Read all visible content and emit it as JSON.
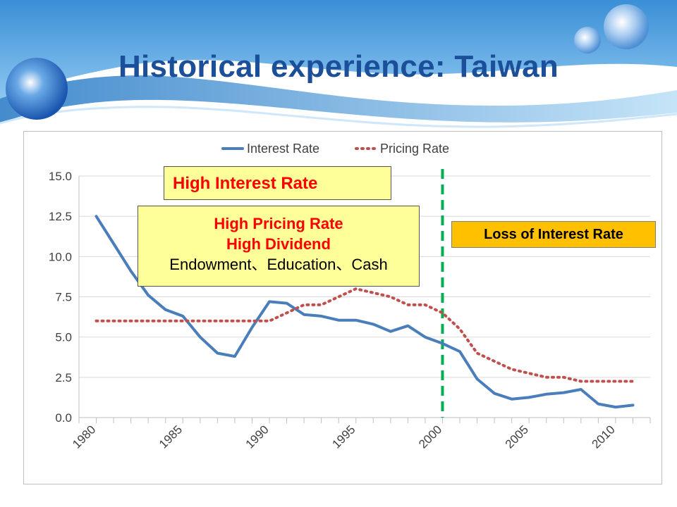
{
  "slide": {
    "title": "Historical experience: Taiwan"
  },
  "colors": {
    "title": "#1c4f9a",
    "interest_line": "#4a7ebb",
    "pricing_line": "#c0504d",
    "divider": "#00b050",
    "callout_yellow": "#ffff99",
    "callout_orange": "#ffc000",
    "callout_red_text": "#ff0000"
  },
  "callouts": {
    "high_interest": "High Interest Rate",
    "high_pricing_line1": "High Pricing Rate",
    "high_pricing_line2": "High Dividend",
    "high_pricing_line3": "Endowment、Education、Cash",
    "loss_of_interest": "Loss of Interest Rate"
  },
  "chart_data": {
    "type": "line",
    "title": "",
    "xlabel": "",
    "ylabel": "",
    "legend_position": "top-center",
    "grid": true,
    "ylim": [
      0,
      15
    ],
    "y_ticks": [
      "0.0",
      "2.5",
      "5.0",
      "7.5",
      "10.0",
      "12.5",
      "15.0"
    ],
    "x_range": [
      1979,
      2012
    ],
    "x_ticks": [
      "1980",
      "1985",
      "1990",
      "1995",
      "2000",
      "2005",
      "2010"
    ],
    "divider_year": 2000,
    "series": [
      {
        "name": "Interest Rate",
        "style": "solid",
        "x": [
          1980,
          1981,
          1982,
          1983,
          1984,
          1985,
          1986,
          1987,
          1988,
          1989,
          1990,
          1991,
          1992,
          1993,
          1994,
          1995,
          1996,
          1997,
          1998,
          1999,
          2000,
          2001,
          2002,
          2003,
          2004,
          2005,
          2006,
          2007,
          2008,
          2009,
          2010,
          2011
        ],
        "y": [
          12.5,
          10.8,
          9.1,
          7.6,
          6.7,
          6.3,
          5.0,
          4.0,
          3.8,
          5.6,
          7.2,
          7.1,
          6.4,
          6.3,
          6.05,
          6.05,
          5.8,
          5.35,
          5.7,
          5.0,
          4.6,
          4.1,
          2.4,
          1.5,
          1.15,
          1.25,
          1.45,
          1.55,
          1.75,
          0.85,
          0.65,
          0.77
        ]
      },
      {
        "name": "Pricing Rate",
        "style": "dotted",
        "x": [
          1980,
          1981,
          1982,
          1983,
          1984,
          1985,
          1986,
          1987,
          1988,
          1989,
          1990,
          1991,
          1992,
          1993,
          1994,
          1995,
          1996,
          1997,
          1998,
          1999,
          2000,
          2001,
          2002,
          2003,
          2004,
          2005,
          2006,
          2007,
          2008,
          2009,
          2010,
          2011
        ],
        "y": [
          6.0,
          6.0,
          6.0,
          6.0,
          6.0,
          6.0,
          6.0,
          6.0,
          6.0,
          6.0,
          6.0,
          6.5,
          7.0,
          7.0,
          7.5,
          8.0,
          7.75,
          7.5,
          7.0,
          7.0,
          6.5,
          5.5,
          4.0,
          3.5,
          3.0,
          2.75,
          2.5,
          2.5,
          2.25,
          2.25,
          2.25,
          2.25
        ]
      }
    ]
  }
}
